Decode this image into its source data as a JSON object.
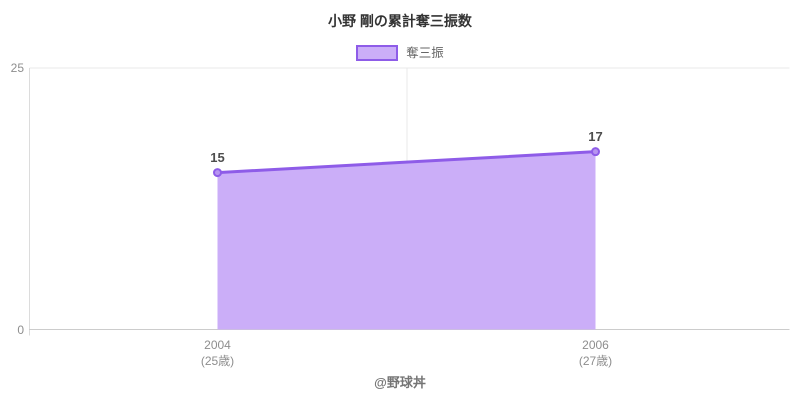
{
  "title": "小野 剛の累計奪三振数",
  "legend": {
    "label": "奪三振"
  },
  "footer": "@野球丼",
  "colors": {
    "line": "#8e5ce8",
    "area_fill": "#cbaef8",
    "marker_fill": "#b794f0",
    "legend_swatch_fill": "#cbaef8",
    "legend_swatch_border": "#8e5ce8",
    "gridline": "#e9e9e9",
    "axis_line": "#cccccc",
    "y_axis_line": "#dcdcdc"
  },
  "chart_data": {
    "type": "area",
    "title": "小野 剛の累計奪三振数",
    "series": [
      {
        "name": "奪三振",
        "values": [
          15,
          17
        ]
      }
    ],
    "x": [
      2004,
      2006
    ],
    "categories": [
      "2004",
      "2006"
    ],
    "x_sublabels": [
      "(25歳)",
      "(27歳)"
    ],
    "ylim": [
      0,
      25
    ],
    "yticks": [
      25,
      0
    ],
    "x_gridlines": [
      2005
    ],
    "grid": "minimal",
    "legend_position": "top",
    "annotations": [
      "15",
      "17"
    ]
  }
}
